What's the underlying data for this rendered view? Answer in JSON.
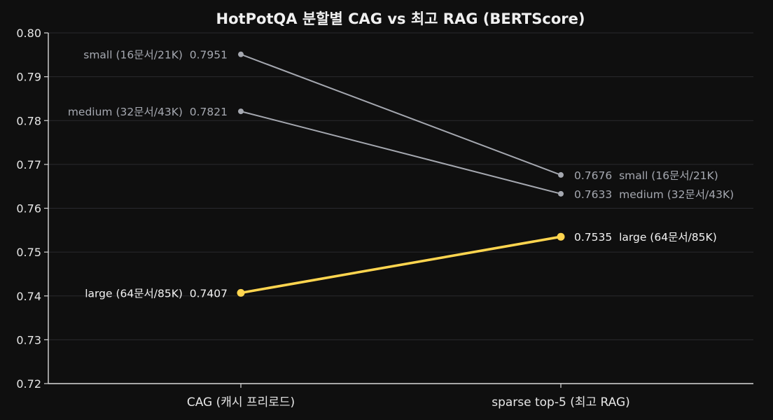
{
  "chart_data": {
    "type": "line",
    "title": "HotPotQA 분할별 CAG vs 최고 RAG (BERTScore)",
    "xlabel": "",
    "ylabel": "",
    "categories": [
      "CAG (캐시 프리로드)",
      "sparse top-5 (최고 RAG)"
    ],
    "ylim": [
      0.72,
      0.8
    ],
    "yticks": [
      0.72,
      0.73,
      0.74,
      0.75,
      0.76,
      0.77,
      0.78,
      0.79,
      0.8
    ],
    "ytick_labels": [
      "0.72",
      "0.73",
      "0.74",
      "0.75",
      "0.76",
      "0.77",
      "0.78",
      "0.79",
      "0.80"
    ],
    "grid": true,
    "series": [
      {
        "name": "small (16문서/21K)",
        "values": [
          0.7951,
          0.7676
        ],
        "value_labels": [
          "0.7951",
          "0.7676"
        ],
        "color": "#a5a8b0",
        "label_color": "#a5a8b0",
        "highlight": false
      },
      {
        "name": "medium (32문서/43K)",
        "values": [
          0.7821,
          0.7633
        ],
        "value_labels": [
          "0.7821",
          "0.7633"
        ],
        "color": "#a5a8b0",
        "label_color": "#a5a8b0",
        "highlight": false
      },
      {
        "name": "large (64문서/85K)",
        "values": [
          0.7407,
          0.7535
        ],
        "value_labels": [
          "0.7407",
          "0.7535"
        ],
        "color": "#ffd54f",
        "label_color": "#f2f2f2",
        "highlight": true
      }
    ]
  }
}
